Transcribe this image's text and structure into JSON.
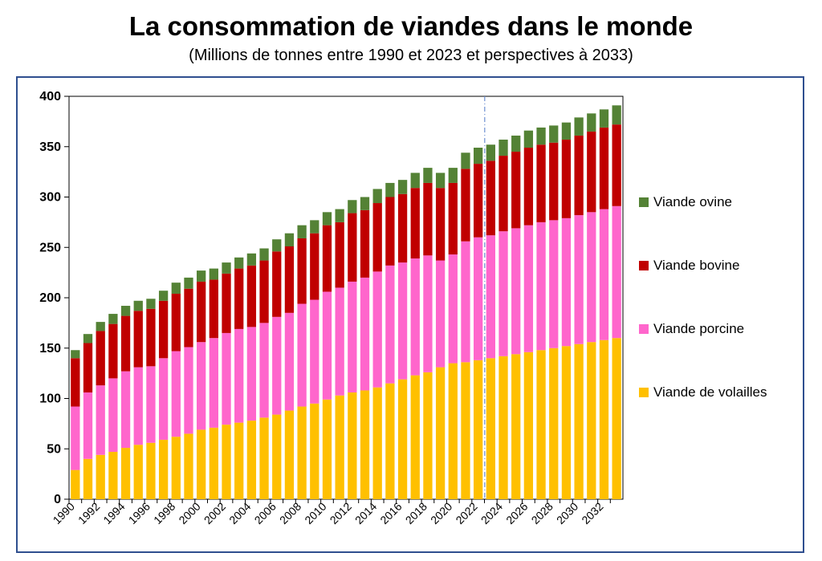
{
  "title": "La consommation de viandes dans le monde",
  "subtitle": "(Millions de tonnes entre 1990 et 2023 et perspectives à 2033)",
  "colors": {
    "frame": "#2f4f8f",
    "volailles": "#ffc000",
    "porcine": "#ff66cc",
    "bovine": "#c00000",
    "ovine": "#548235",
    "divider": "#6a8fd0"
  },
  "chart_data": {
    "type": "bar",
    "stacked": true,
    "x": [
      1990,
      1991,
      1992,
      1993,
      1994,
      1995,
      1996,
      1997,
      1998,
      1999,
      2000,
      2001,
      2002,
      2003,
      2004,
      2005,
      2006,
      2007,
      2008,
      2009,
      2010,
      2011,
      2012,
      2013,
      2014,
      2015,
      2016,
      2017,
      2018,
      2019,
      2020,
      2021,
      2022,
      2023,
      2024,
      2025,
      2026,
      2027,
      2028,
      2029,
      2030,
      2031,
      2032,
      2033
    ],
    "x_tick_labels": [
      "1990",
      "1992",
      "1994",
      "1996",
      "1998",
      "2000",
      "2002",
      "2004",
      "2006",
      "2008",
      "2010",
      "2012",
      "2014",
      "2016",
      "2018",
      "2020",
      "2022",
      "2024",
      "2026",
      "2028",
      "2030",
      "2032"
    ],
    "ylim": [
      0,
      400
    ],
    "yticks": [
      0,
      50,
      100,
      150,
      200,
      250,
      300,
      350,
      400
    ],
    "projection_start": 2023,
    "legend_position": "right",
    "series": [
      {
        "name": "Viande de volailles",
        "color_key": "volailles",
        "values": [
          29,
          40,
          44,
          47,
          51,
          54,
          56,
          59,
          62,
          65,
          69,
          71,
          74,
          76,
          78,
          81,
          84,
          88,
          92,
          95,
          99,
          103,
          106,
          108,
          111,
          115,
          119,
          123,
          126,
          131,
          135,
          136,
          138,
          140,
          142,
          144,
          146,
          148,
          150,
          152,
          154,
          156,
          158,
          160
        ]
      },
      {
        "name": "Viande porcine",
        "color_key": "porcine",
        "values": [
          63,
          66,
          69,
          73,
          76,
          77,
          76,
          81,
          85,
          86,
          87,
          89,
          91,
          93,
          93,
          94,
          97,
          97,
          102,
          103,
          107,
          107,
          110,
          112,
          115,
          117,
          116,
          116,
          116,
          106,
          108,
          120,
          122,
          122,
          124,
          125,
          126,
          127,
          127,
          127,
          128,
          129,
          130,
          131
        ]
      },
      {
        "name": "Viande bovine",
        "color_key": "bovine",
        "values": [
          48,
          49,
          54,
          54,
          55,
          56,
          57,
          57,
          57,
          58,
          60,
          58,
          59,
          60,
          61,
          62,
          65,
          66,
          65,
          66,
          66,
          65,
          68,
          67,
          68,
          68,
          68,
          70,
          72,
          72,
          71,
          72,
          73,
          74,
          75,
          76,
          77,
          77,
          77,
          78,
          79,
          80,
          81,
          81
        ]
      },
      {
        "name": "Viande ovine",
        "color_key": "ovine",
        "values": [
          8,
          9,
          9,
          10,
          10,
          10,
          10,
          10,
          11,
          11,
          11,
          11,
          11,
          11,
          12,
          12,
          12,
          13,
          13,
          13,
          13,
          13,
          13,
          13,
          14,
          14,
          14,
          15,
          15,
          15,
          15,
          16,
          16,
          16,
          16,
          16,
          17,
          17,
          17,
          17,
          18,
          18,
          18,
          19
        ]
      }
    ]
  }
}
